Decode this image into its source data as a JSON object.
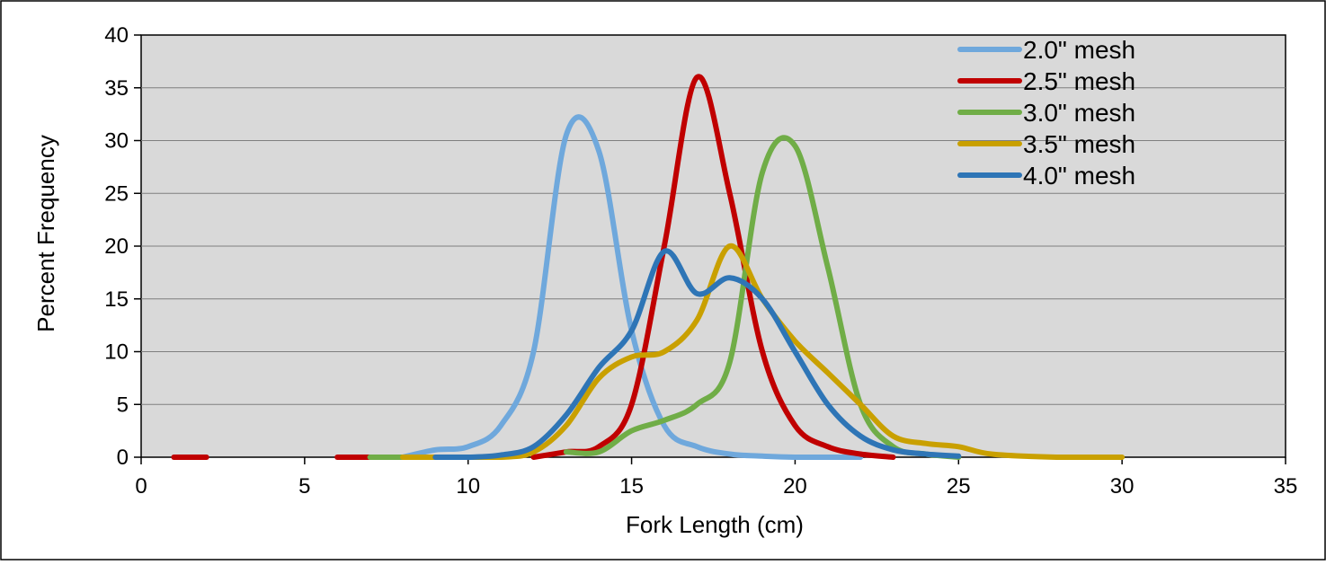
{
  "chart_data": {
    "type": "line",
    "title": "",
    "xlabel": "Fork Length (cm)",
    "ylabel": "Percent Frequency",
    "xlim": [
      0,
      35
    ],
    "ylim": [
      0,
      40
    ],
    "xticks": [
      0,
      5,
      10,
      15,
      20,
      25,
      30,
      35
    ],
    "yticks": [
      0,
      5,
      10,
      15,
      20,
      25,
      30,
      35,
      40
    ],
    "grid": "horizontal",
    "plot_background": "#d9d9d9",
    "legend_position": "top-right",
    "series": [
      {
        "name": "2.0\" mesh",
        "color": "#6fa8dc",
        "points": [
          [
            3,
            0
          ],
          [
            8,
            0
          ],
          [
            9,
            0.7
          ],
          [
            10,
            1
          ],
          [
            11,
            3
          ],
          [
            12,
            10
          ],
          [
            13,
            30.5
          ],
          [
            14,
            29
          ],
          [
            15,
            12
          ],
          [
            16,
            3
          ],
          [
            17,
            1
          ],
          [
            18,
            0.3
          ],
          [
            19,
            0.1
          ],
          [
            20,
            0
          ],
          [
            22,
            0
          ]
        ]
      },
      {
        "name": "2.5\" mesh",
        "color": "#c00000",
        "points": [
          [
            1,
            0
          ],
          [
            2,
            0
          ],
          [
            6,
            0
          ],
          [
            7,
            0
          ],
          [
            12,
            0
          ],
          [
            13,
            0.5
          ],
          [
            14,
            1
          ],
          [
            15,
            5
          ],
          [
            16,
            20
          ],
          [
            17,
            36
          ],
          [
            18,
            25
          ],
          [
            19,
            10
          ],
          [
            20,
            3
          ],
          [
            21,
            1
          ],
          [
            22,
            0.3
          ],
          [
            23,
            0
          ]
        ]
      },
      {
        "name": "3.0\" mesh",
        "color": "#70ad47",
        "points": [
          [
            7,
            0
          ],
          [
            8,
            0
          ],
          [
            13,
            0.5
          ],
          [
            14,
            0.5
          ],
          [
            15,
            2.5
          ],
          [
            16,
            3.5
          ],
          [
            17,
            5
          ],
          [
            18,
            9
          ],
          [
            19,
            27
          ],
          [
            20,
            29.5
          ],
          [
            21,
            18
          ],
          [
            22,
            5
          ],
          [
            23,
            1
          ],
          [
            24,
            0.3
          ],
          [
            25,
            0
          ]
        ]
      },
      {
        "name": "3.5\" mesh",
        "color": "#c9a000",
        "points": [
          [
            8,
            0
          ],
          [
            9,
            0
          ],
          [
            11,
            0
          ],
          [
            12,
            0.5
          ],
          [
            13,
            3
          ],
          [
            14,
            7.5
          ],
          [
            15,
            9.5
          ],
          [
            16,
            10
          ],
          [
            17,
            13
          ],
          [
            18,
            20
          ],
          [
            19,
            15
          ],
          [
            20,
            11
          ],
          [
            21,
            8
          ],
          [
            22,
            5
          ],
          [
            23,
            2
          ],
          [
            24,
            1.3
          ],
          [
            25,
            1
          ],
          [
            26,
            0.3
          ],
          [
            28,
            0
          ],
          [
            30,
            0
          ]
        ]
      },
      {
        "name": "4.0\" mesh",
        "color": "#2e75b6",
        "points": [
          [
            9,
            0
          ],
          [
            10,
            0
          ],
          [
            11,
            0.2
          ],
          [
            12,
            1
          ],
          [
            13,
            4
          ],
          [
            14,
            8.5
          ],
          [
            15,
            12
          ],
          [
            16,
            19.5
          ],
          [
            17,
            15.5
          ],
          [
            18,
            17
          ],
          [
            19,
            15
          ],
          [
            20,
            10
          ],
          [
            21,
            5
          ],
          [
            22,
            2
          ],
          [
            23,
            0.7
          ],
          [
            24,
            0.3
          ],
          [
            25,
            0.1
          ],
          [
            28,
            0
          ]
        ]
      }
    ]
  }
}
